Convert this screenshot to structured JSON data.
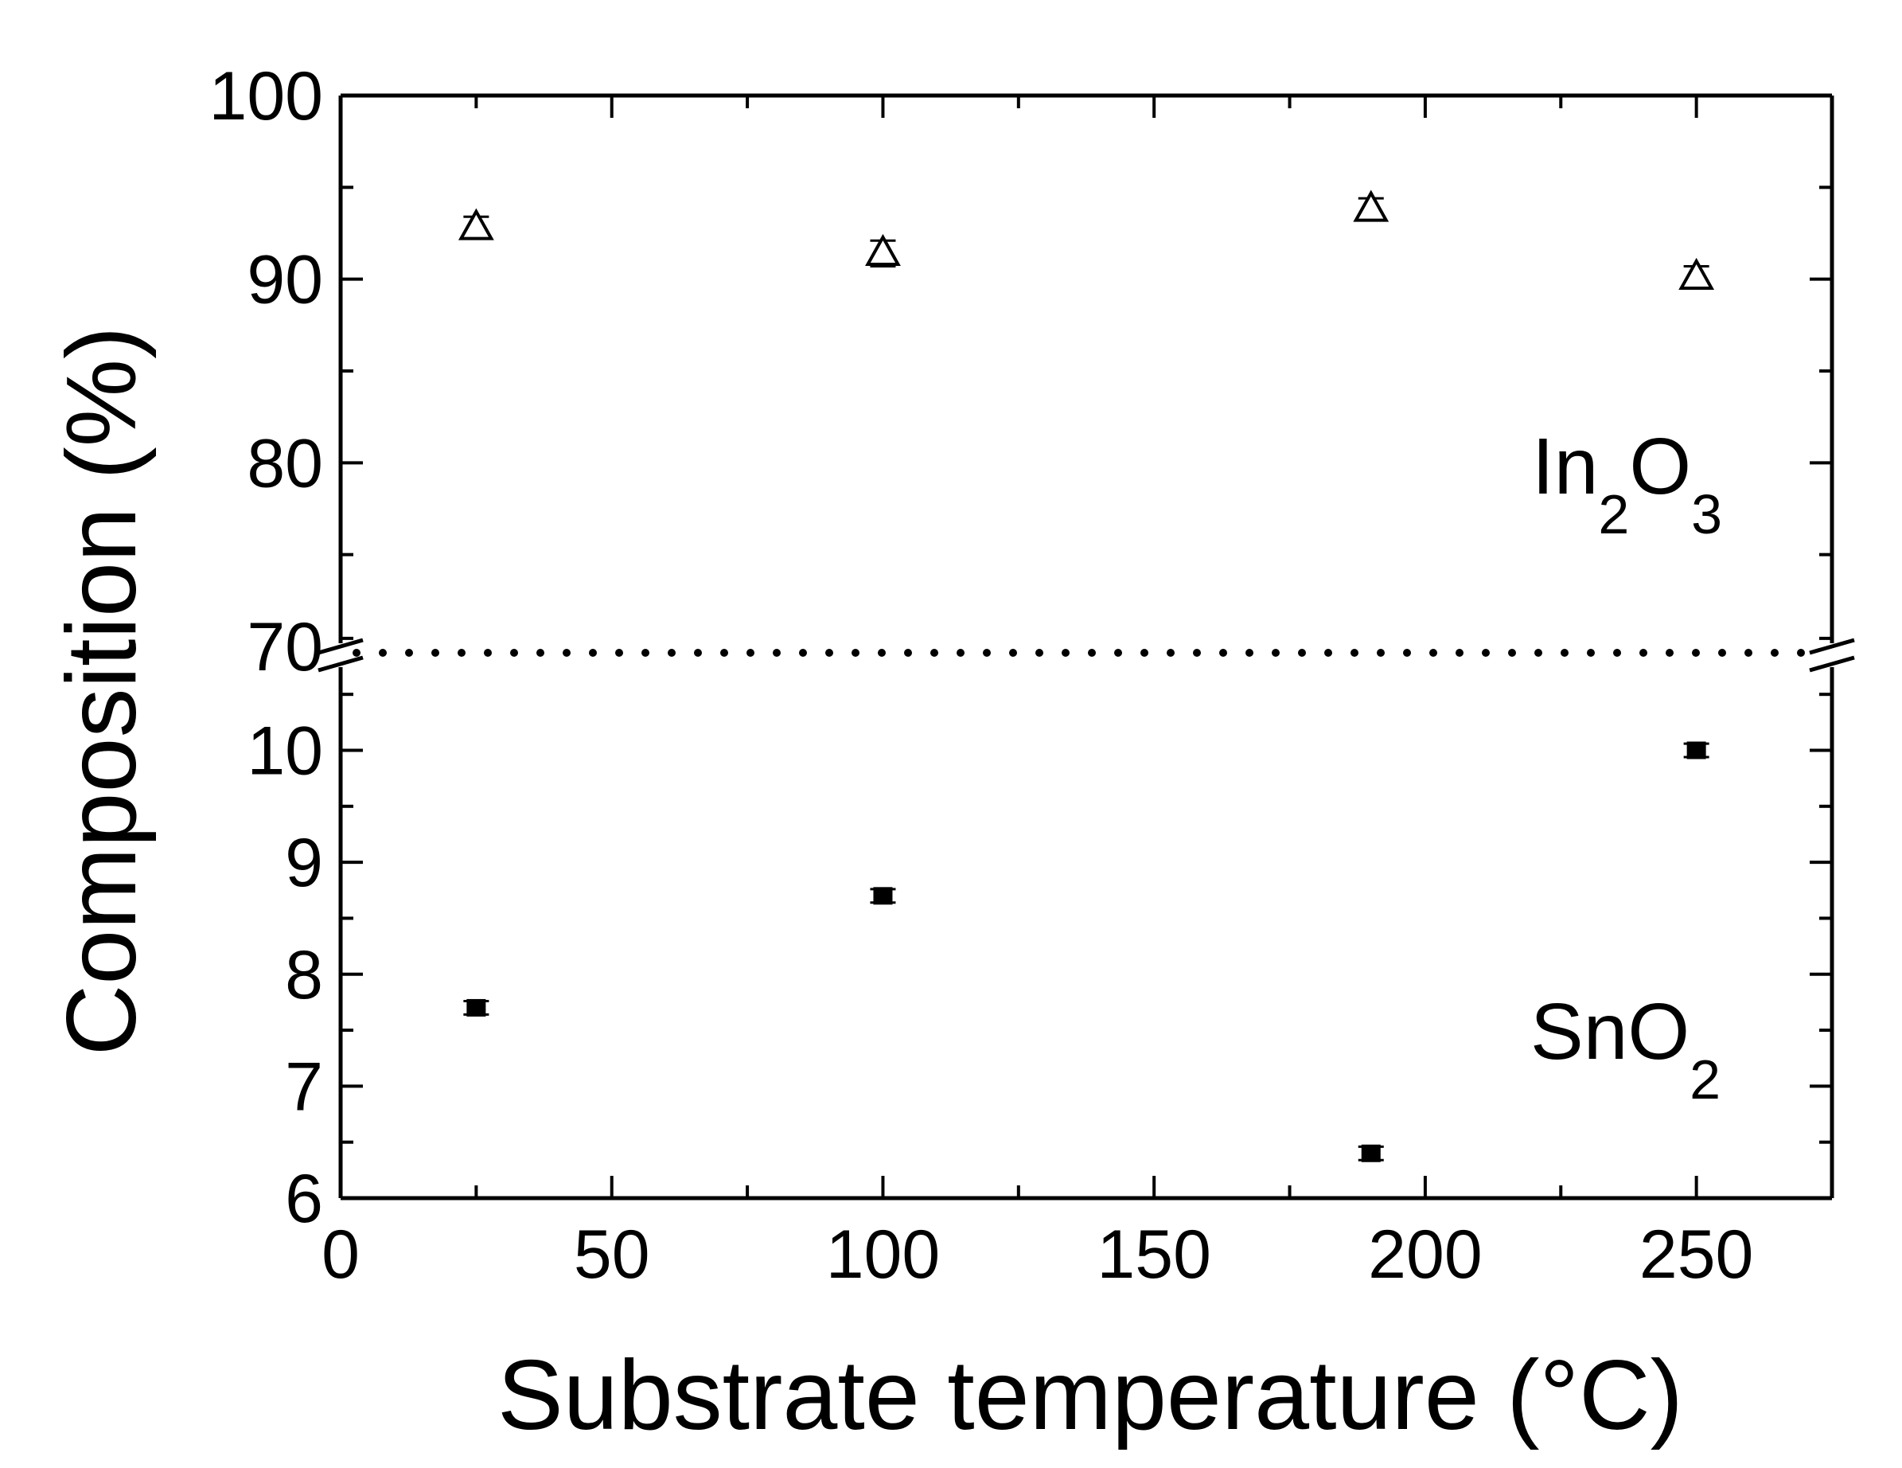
{
  "chart_data": {
    "type": "scatter",
    "xlabel": "Substrate temperature (°C)",
    "ylabel": "Composition (%)",
    "xlim": [
      0,
      275
    ],
    "xticks": [
      0,
      50,
      100,
      150,
      200,
      250
    ],
    "x_minor_step": 25,
    "axis_break": true,
    "panels": [
      {
        "name": "upper",
        "ylim": [
          70,
          100
        ],
        "yticks": [
          70,
          80,
          90,
          100
        ],
        "y_minor_step": 5
      },
      {
        "name": "lower",
        "ylim": [
          6,
          10.8
        ],
        "yticks": [
          6,
          7,
          8,
          9,
          10
        ],
        "y_minor_step": 0.5
      }
    ],
    "series": [
      {
        "name": "In2O3",
        "panel": "upper",
        "marker": "open-triangle",
        "x": [
          25,
          100,
          190,
          250
        ],
        "y": [
          92.8,
          91.4,
          93.8,
          90.1
        ],
        "yerr": [
          0.6,
          0.7,
          0.6,
          0.6
        ]
      },
      {
        "name": "SnO2",
        "panel": "lower",
        "marker": "filled-square",
        "x": [
          25,
          100,
          190,
          250
        ],
        "y": [
          7.7,
          8.7,
          6.4,
          10.0
        ],
        "yerr": [
          0.06,
          0.06,
          0.06,
          0.06
        ]
      }
    ],
    "annotations": {
      "in2o3": {
        "main": "In",
        "sub1": "2",
        "mid": "O",
        "sub2": "3"
      },
      "sno2": {
        "main": "SnO",
        "sub1": "2"
      }
    },
    "grid": false,
    "legend": "none"
  }
}
